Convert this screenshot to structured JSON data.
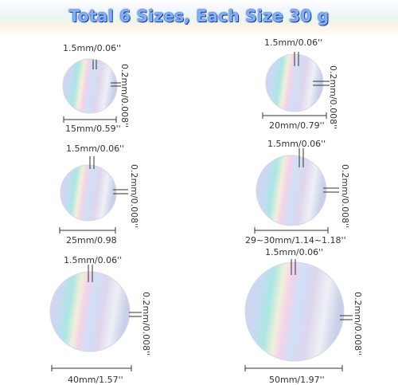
{
  "title": "Total 6 Sizes, Each Size 30 g",
  "items": [
    {
      "thickness_top": "1.5mm/0.06''",
      "thickness_side": "0.2mm/0.008''",
      "diameter": "15mm/0.59''"
    },
    {
      "thickness_top": "1.5mm/0.06''",
      "thickness_side": "0.2mm/0.008''",
      "diameter": "20mm/0.79''"
    },
    {
      "thickness_top": "1.5mm/0.06''",
      "thickness_side": "0.2mm/0.008''",
      "diameter": "25mm/0.98"
    },
    {
      "thickness_top": "1.5mm/0.06''",
      "thickness_side": "0.2mm/0.008''",
      "diameter": "29~30mm/1.14~1.18''"
    },
    {
      "thickness_top": "1.5mm/0.06''",
      "thickness_side": "0.2mm/0.008''",
      "diameter": "40mm/1.57''"
    },
    {
      "thickness_top": "1.5mm/0.06''",
      "thickness_side": "0.2mm/0.008''",
      "diameter": "50mm/1.97''"
    }
  ]
}
